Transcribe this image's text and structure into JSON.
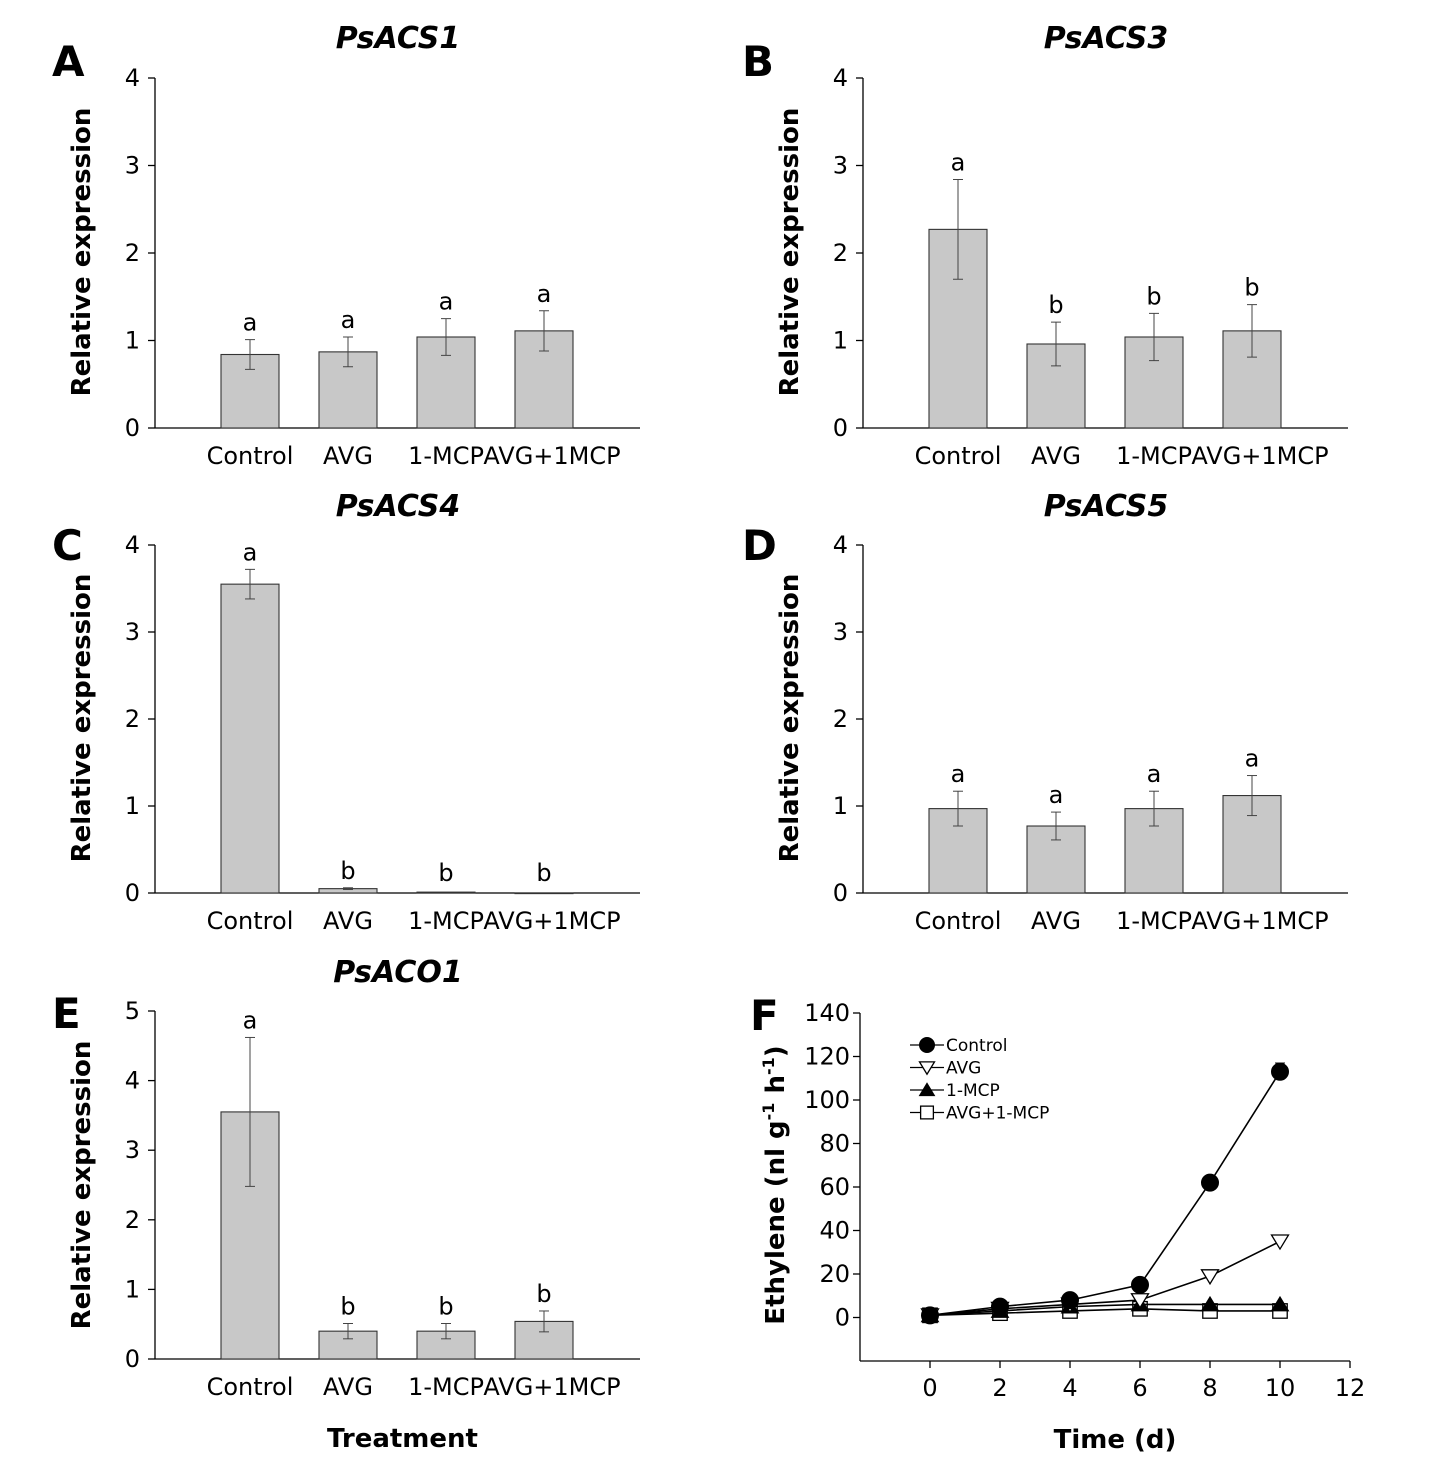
{
  "chart_data": [
    {
      "panel": "A",
      "type": "bar",
      "title": "PsACS1",
      "ylabel": "Relative expression",
      "xlabel": "",
      "categories": [
        "Control",
        "AVG",
        "1-MCP",
        "AVG+1MCP"
      ],
      "values": [
        0.84,
        0.87,
        1.04,
        1.11
      ],
      "errors": [
        0.17,
        0.17,
        0.21,
        0.23
      ],
      "significance": [
        "a",
        "a",
        "a",
        "a"
      ],
      "ylim": [
        0,
        4
      ],
      "yticks": [
        0,
        1,
        2,
        3,
        4
      ],
      "bar_color": "#c8c8c8"
    },
    {
      "panel": "B",
      "type": "bar",
      "title": "PsACS3",
      "ylabel": "Relative expression",
      "xlabel": "",
      "categories": [
        "Control",
        "AVG",
        "1-MCP",
        "AVG+1MCP"
      ],
      "values": [
        2.27,
        0.96,
        1.04,
        1.11
      ],
      "errors": [
        0.57,
        0.25,
        0.27,
        0.3
      ],
      "significance": [
        "a",
        "b",
        "b",
        "b"
      ],
      "ylim": [
        0,
        4
      ],
      "yticks": [
        0,
        1,
        2,
        3,
        4
      ],
      "bar_color": "#c8c8c8"
    },
    {
      "panel": "C",
      "type": "bar",
      "title": "PsACS4",
      "ylabel": "Relative expression",
      "xlabel": "",
      "categories": [
        "Control",
        "AVG",
        "1-MCP",
        "AVG+1MCP"
      ],
      "values": [
        3.55,
        0.05,
        0.01,
        0.0
      ],
      "errors": [
        0.17,
        0.01,
        0.0,
        0.0
      ],
      "significance": [
        "a",
        "b",
        "b",
        "b"
      ],
      "ylim": [
        0,
        4
      ],
      "yticks": [
        0,
        1,
        2,
        3,
        4
      ],
      "bar_color": "#c8c8c8"
    },
    {
      "panel": "D",
      "type": "bar",
      "title": "PsACS5",
      "ylabel": "Relative expression",
      "xlabel": "",
      "categories": [
        "Control",
        "AVG",
        "1-MCP",
        "AVG+1MCP"
      ],
      "values": [
        0.97,
        0.77,
        0.97,
        1.12
      ],
      "errors": [
        0.2,
        0.16,
        0.2,
        0.23
      ],
      "significance": [
        "a",
        "a",
        "a",
        "a"
      ],
      "ylim": [
        0,
        4
      ],
      "yticks": [
        0,
        1,
        2,
        3,
        4
      ],
      "bar_color": "#c8c8c8"
    },
    {
      "panel": "E",
      "type": "bar",
      "title": "PsACO1",
      "ylabel": "Relative expression",
      "xlabel": "Treatment",
      "categories": [
        "Control",
        "AVG",
        "1-MCP",
        "AVG+1MCP"
      ],
      "values": [
        3.55,
        0.4,
        0.4,
        0.54
      ],
      "errors": [
        1.07,
        0.11,
        0.11,
        0.15
      ],
      "significance": [
        "a",
        "b",
        "b",
        "b"
      ],
      "ylim": [
        0,
        5
      ],
      "yticks": [
        0,
        1,
        2,
        3,
        4,
        5
      ],
      "bar_color": "#c8c8c8"
    },
    {
      "panel": "F",
      "type": "line",
      "title": "",
      "ylabel": "Ethylene (nl g-1 h-1)",
      "ylabel_parts": [
        "Ethylene (nl g",
        "-1",
        " h",
        "-1",
        ")"
      ],
      "xlabel": "Time (d)",
      "x": [
        0,
        2,
        4,
        6,
        8,
        10
      ],
      "xlim": [
        -2,
        12
      ],
      "xticks": [
        0,
        2,
        4,
        6,
        8,
        10,
        12
      ],
      "ylim": [
        -20,
        140
      ],
      "yticks": [
        0,
        20,
        40,
        60,
        80,
        100,
        120,
        140
      ],
      "legend_position": "top-left",
      "series": [
        {
          "name": "Control",
          "marker": "filled-circle",
          "values": [
            1,
            5,
            8,
            15,
            62,
            113
          ],
          "errors": [
            0,
            0,
            0,
            0,
            0,
            4
          ]
        },
        {
          "name": "AVG",
          "marker": "open-triangle-down",
          "values": [
            1,
            4,
            6,
            8,
            19,
            35
          ],
          "errors": [
            0,
            0,
            0,
            0,
            0,
            0
          ]
        },
        {
          "name": "1-MCP",
          "marker": "filled-triangle-up",
          "values": [
            1,
            3,
            5,
            6,
            6,
            6
          ],
          "errors": [
            0,
            0,
            0,
            0,
            0,
            0
          ]
        },
        {
          "name": "AVG+1-MCP",
          "marker": "open-square",
          "values": [
            1,
            2,
            3,
            4,
            3,
            3
          ],
          "errors": [
            0,
            0,
            0,
            0,
            0,
            0
          ]
        }
      ]
    }
  ]
}
